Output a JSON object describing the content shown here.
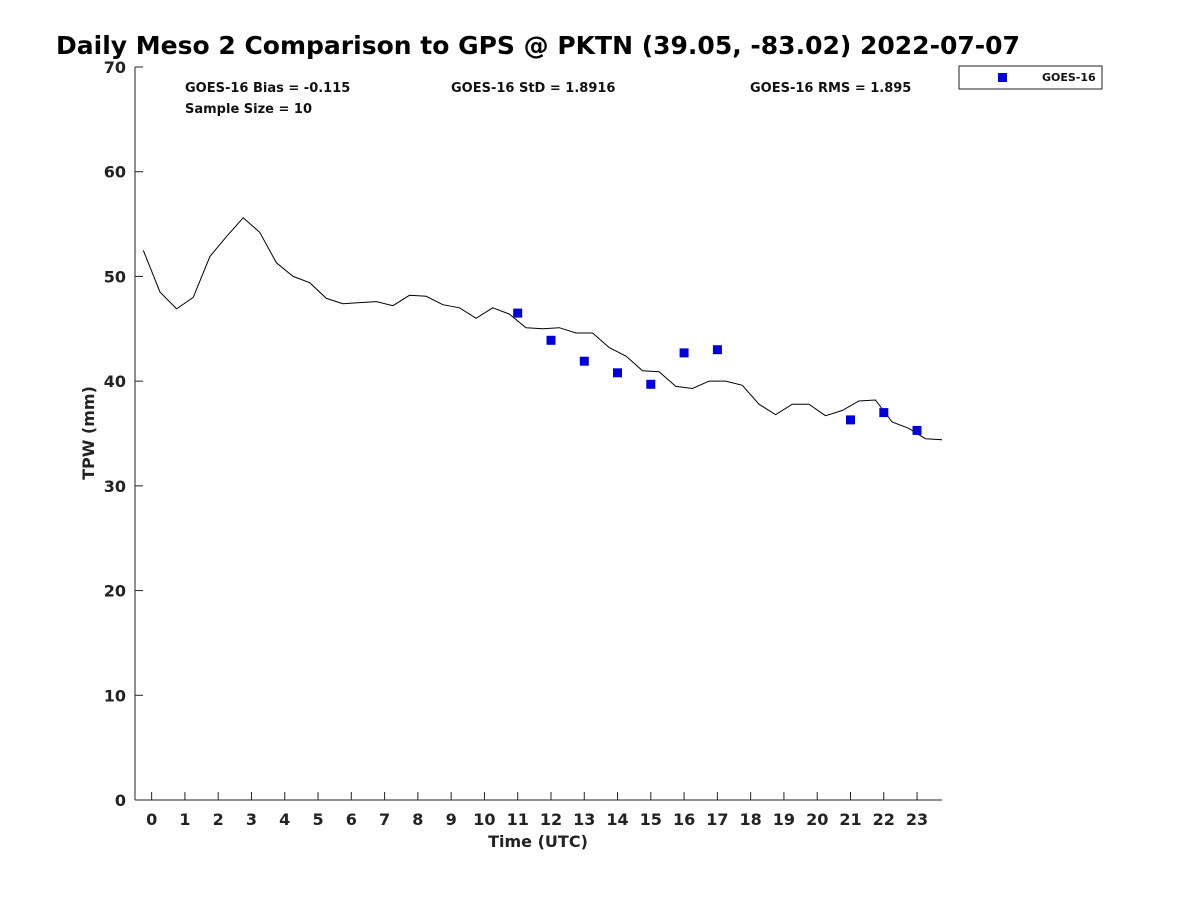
{
  "chart_data": {
    "type": "scatter",
    "title": "Daily Meso 2 Comparison to GPS @ PKTN (39.05, -83.02) 2022-07-07",
    "xlabel": "Time (UTC)",
    "ylabel": "TPW (mm)",
    "xlim": [
      -0.5,
      23.75
    ],
    "ylim": [
      0,
      70
    ],
    "x_ticks": [
      0,
      1,
      2,
      3,
      4,
      5,
      6,
      7,
      8,
      9,
      10,
      11,
      12,
      13,
      14,
      15,
      16,
      17,
      18,
      19,
      20,
      21,
      22,
      23
    ],
    "x_tick_labels": [
      "0",
      "1",
      "2",
      "3",
      "4",
      "5",
      "6",
      "7",
      "8",
      "9",
      "10",
      "11",
      "12",
      "13",
      "14",
      "15",
      "16",
      "17",
      "18",
      "19",
      "20",
      "21",
      "22",
      "23"
    ],
    "y_ticks": [
      0,
      10,
      20,
      30,
      40,
      50,
      60,
      70
    ],
    "y_tick_labels": [
      "0",
      "10",
      "20",
      "30",
      "40",
      "50",
      "60",
      "70"
    ],
    "grid": false,
    "legend_position": "top-right, outside plot",
    "stats": {
      "bias": "GOES-16 Bias = -0.115",
      "std": "GOES-16 StD = 1.8916",
      "rms": "GOES-16 RMS = 1.895",
      "sample_size": "Sample Size = 10"
    },
    "series": [
      {
        "kind": "line",
        "color": "#000000",
        "x": [
          -0.25,
          0.25,
          0.75,
          1.25,
          1.75,
          2.25,
          2.75,
          3.25,
          3.75,
          4.25,
          4.75,
          5.25,
          5.75,
          6.25,
          6.75,
          7.25,
          7.75,
          8.25,
          8.75,
          9.25,
          9.75,
          10.25,
          10.75,
          11.25,
          11.75,
          12.25,
          12.75,
          13.25,
          13.75,
          14.25,
          14.75,
          15.25,
          15.75,
          16.25,
          16.75,
          17.25,
          17.75,
          18.25,
          18.75,
          19.25,
          19.75,
          20.25,
          20.75,
          21.25,
          21.75,
          22.25,
          22.75,
          23.25,
          23.75
        ],
        "y": [
          52.5,
          48.5,
          46.9,
          48.0,
          51.9,
          53.8,
          55.6,
          54.2,
          51.3,
          50.0,
          49.4,
          47.9,
          47.4,
          47.5,
          47.6,
          47.2,
          48.2,
          48.1,
          47.3,
          47.0,
          46.0,
          47.0,
          46.4,
          45.1,
          45.0,
          45.1,
          44.6,
          44.6,
          43.2,
          42.4,
          41.0,
          40.9,
          39.5,
          39.3,
          40.0,
          40.0,
          39.6,
          37.8,
          36.8,
          37.8,
          37.8,
          36.7,
          37.2,
          38.1,
          38.2,
          36.1,
          35.5,
          34.5,
          34.4
        ]
      },
      {
        "kind": "scatter",
        "name": "GOES-16",
        "color": "#0000dd",
        "x": [
          11,
          12,
          13,
          14,
          15,
          16,
          17,
          21,
          22,
          23
        ],
        "y": [
          46.5,
          43.9,
          41.9,
          40.8,
          39.7,
          42.7,
          43.0,
          36.3,
          37.0,
          35.3
        ]
      }
    ]
  }
}
